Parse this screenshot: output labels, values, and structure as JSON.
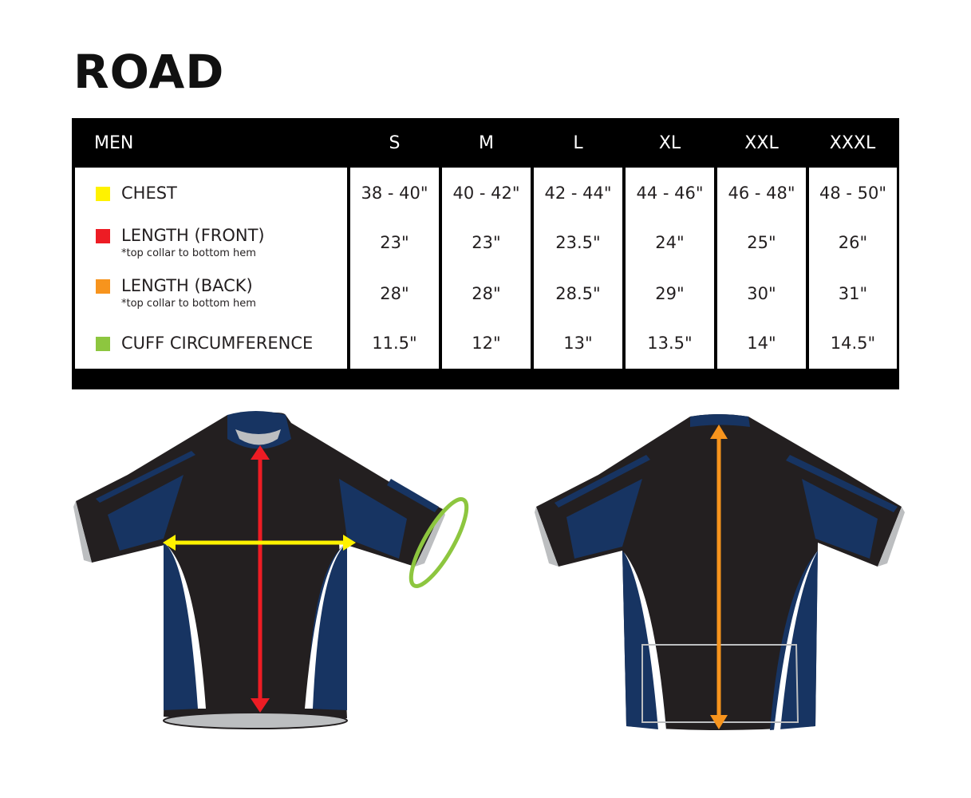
{
  "title": "ROAD",
  "table": {
    "header": "MEN",
    "sizes": [
      "S",
      "M",
      "L",
      "XL",
      "XXL",
      "XXXL"
    ],
    "rows": [
      {
        "label": "CHEST",
        "note": "",
        "color": "#fff200",
        "values": [
          "38 - 40\"",
          "40 - 42\"",
          "42 - 44\"",
          "44 - 46\"",
          "46 - 48\"",
          "48 - 50\""
        ]
      },
      {
        "label": "LENGTH (FRONT)",
        "note": "*top collar to bottom hem",
        "color": "#ed1c24",
        "values": [
          "23\"",
          "23\"",
          "23.5\"",
          "24\"",
          "25\"",
          "26\""
        ]
      },
      {
        "label": "LENGTH (BACK)",
        "note": "*top collar to bottom hem",
        "color": "#f7941d",
        "values": [
          "28\"",
          "28\"",
          "28.5\"",
          "29\"",
          "30\"",
          "31\""
        ]
      },
      {
        "label": "CUFF CIRCUMFERENCE",
        "note": "",
        "color": "#8dc63f",
        "values": [
          "11.5\"",
          "12\"",
          "13\"",
          "13.5\"",
          "14\"",
          "14.5\""
        ]
      }
    ]
  },
  "colors": {
    "jersey_black": "#231f20",
    "jersey_navy": "#173462",
    "trim_gray": "#bcbec0"
  }
}
